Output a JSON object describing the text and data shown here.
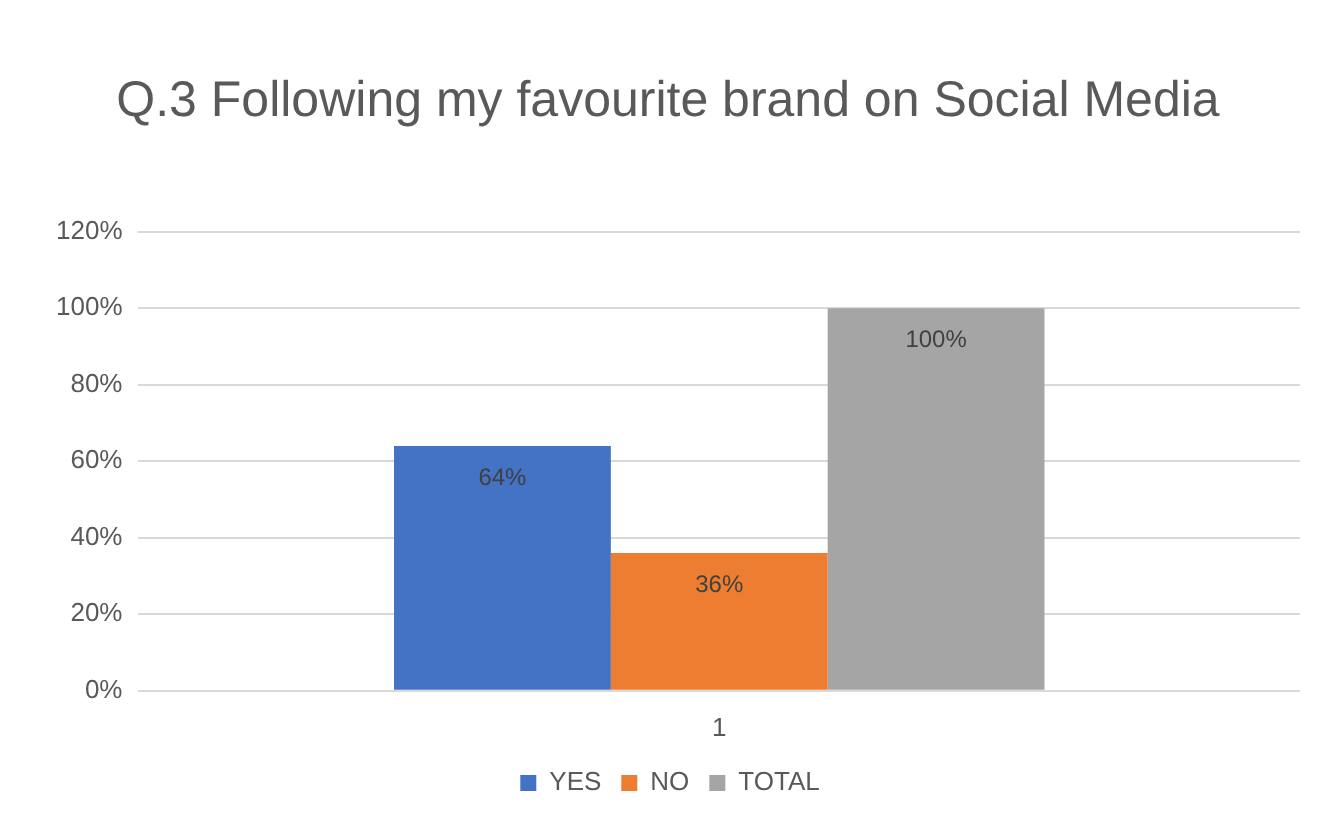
{
  "chart_data": {
    "type": "bar",
    "title": "Q.3 Following my favourite brand on Social Media",
    "categories": [
      "1"
    ],
    "series": [
      {
        "name": "YES",
        "color": "#4472c4",
        "values": [
          64
        ],
        "value_labels": [
          "64%"
        ]
      },
      {
        "name": "NO",
        "color": "#ed7d31",
        "values": [
          36
        ],
        "value_labels": [
          "36%"
        ]
      },
      {
        "name": "TOTAL",
        "color": "#a5a5a5",
        "values": [
          100
        ],
        "value_labels": [
          "100%"
        ]
      }
    ],
    "ylim": [
      0,
      120
    ],
    "yticks": [
      {
        "value": 0,
        "label": "0%"
      },
      {
        "value": 20,
        "label": "20%"
      },
      {
        "value": 40,
        "label": "40%"
      },
      {
        "value": 60,
        "label": "60%"
      },
      {
        "value": 80,
        "label": "80%"
      },
      {
        "value": 100,
        "label": "100%"
      },
      {
        "value": 120,
        "label": "120%"
      }
    ],
    "grid": "y",
    "legend": "bottom"
  }
}
